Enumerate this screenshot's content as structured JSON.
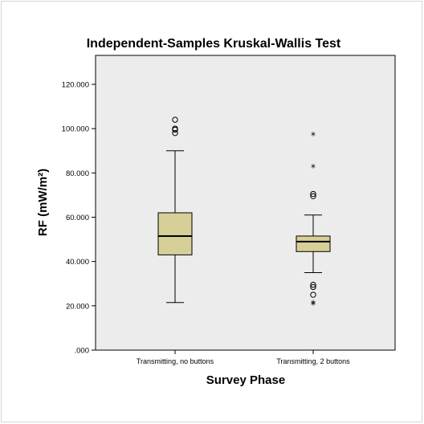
{
  "chart_data": {
    "type": "boxplot",
    "title": "Independent-Samples Kruskal-Wallis Test",
    "xlabel": "Survey Phase",
    "ylabel": "RF (mW/m²)",
    "ylim": [
      0,
      120
    ],
    "yticks": [
      {
        "value": 0,
        "label": ".000"
      },
      {
        "value": 20,
        "label": "20.000"
      },
      {
        "value": 40,
        "label": "40.000"
      },
      {
        "value": 60,
        "label": "60.000"
      },
      {
        "value": 80,
        "label": "80.000"
      },
      {
        "value": 100,
        "label": "100.000"
      },
      {
        "value": 120,
        "label": "120.000"
      }
    ],
    "grid": false,
    "colors": {
      "plot_background": "#ececec",
      "box_fill": "#d6cf98",
      "line": "#000000"
    },
    "categories": [
      "Transmitting, no buttons",
      "Transmitting, 2 buttons"
    ],
    "boxes": [
      {
        "category": "Transmitting, no buttons",
        "whisker_low": 21.5,
        "q1": 43,
        "median": 51.5,
        "q3": 62,
        "whisker_high": 90,
        "outliers": [
          98,
          99.5,
          100,
          104
        ],
        "extremes": []
      },
      {
        "category": "Transmitting, 2 buttons",
        "whisker_low": 35,
        "q1": 44.5,
        "median": 49,
        "q3": 51.5,
        "whisker_high": 61,
        "outliers": [
          25,
          28.5,
          29.5,
          69.5,
          70.5
        ],
        "extremes": [
          20.5,
          21,
          82.5,
          97
        ]
      }
    ]
  }
}
